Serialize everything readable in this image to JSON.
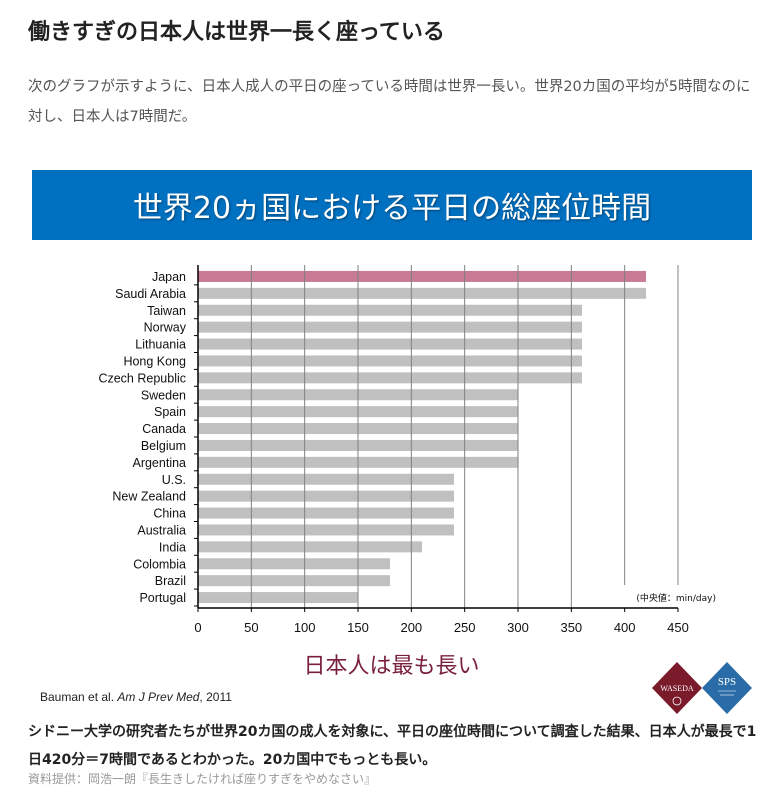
{
  "article": {
    "title": "働きすぎの日本人は世界一長く座っている",
    "intro": "次のグラフが示すように、日本人成人の平日の座っている時間は世界一長い。世界20カ国の平均が5時間なのに対し、日本人は7時間だ。",
    "summary": "シドニー大学の研究者たちが世界20カ国の成人を対象に、平日の座位時間について調査した結果、日本人が最長で1日420分＝7時間であるとわかった。20カ国中でもっとも長い。",
    "source": "資料提供：岡浩一朗『長生きしたければ座りすぎをやめなさい』"
  },
  "figure": {
    "banner": "世界20ヵ国における平日の総座位時間",
    "highlight": "日本人は最も長い",
    "citation_authors": "Bauman et al. ",
    "citation_journal": "Am J Prev Med",
    "citation_year": ", 2011",
    "logo_left": "WASEDA",
    "logo_right": "SPS"
  },
  "chart_data": {
    "type": "bar",
    "orientation": "horizontal",
    "title": "世界20ヵ国における平日の総座位時間",
    "unit_note": "(中央値：min/day)",
    "xlim": [
      0,
      450
    ],
    "xticks": [
      0,
      50,
      100,
      150,
      200,
      250,
      300,
      350,
      400,
      450
    ],
    "grid": true,
    "categories": [
      "Japan",
      "Saudi Arabia",
      "Taiwan",
      "Norway",
      "Lithuania",
      "Hong Kong",
      "Czech Republic",
      "Sweden",
      "Spain",
      "Canada",
      "Belgium",
      "Argentina",
      "U.S.",
      "New Zealand",
      "China",
      "Australia",
      "India",
      "Colombia",
      "Brazil",
      "Portugal"
    ],
    "values": [
      420,
      420,
      360,
      360,
      360,
      360,
      360,
      300,
      300,
      300,
      300,
      300,
      240,
      240,
      240,
      240,
      210,
      180,
      180,
      150
    ],
    "highlight_category": "Japan",
    "colors": {
      "highlight": "#c97b95",
      "default": "#c0c0c0",
      "grid": "#808080"
    }
  }
}
